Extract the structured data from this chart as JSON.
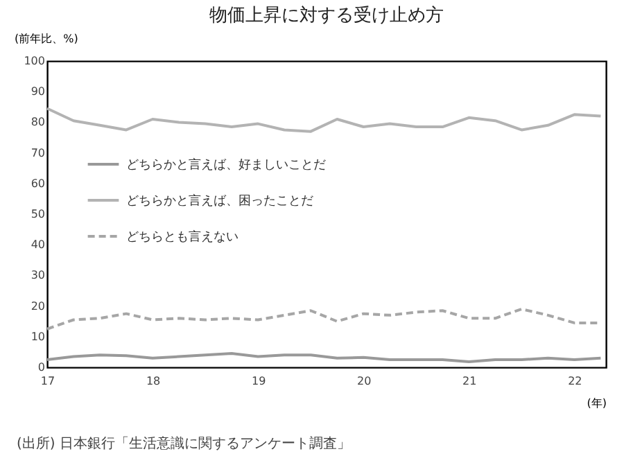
{
  "chart_data": {
    "type": "line",
    "title": "物価上昇に対する受け止め方",
    "ylabel": "(前年比、%)",
    "xlabel": "(年)",
    "annotations": [
      "(出所) 日本銀行「生活意識に関するアンケート調査」"
    ],
    "x": [
      2017,
      2017.25,
      2017.5,
      2017.75,
      2018,
      2018.25,
      2018.5,
      2018.75,
      2019,
      2019.25,
      2019.5,
      2019.75,
      2020,
      2020.25,
      2020.5,
      2020.75,
      2021,
      2021.25,
      2021.5,
      2021.75,
      2022,
      2022.25
    ],
    "series": [
      {
        "name": "どちらかと言えば、好ましいことだ",
        "color": "#999999",
        "line_style": "solid",
        "values": [
          2.5,
          3.5,
          4,
          3.8,
          3,
          3.5,
          4,
          4.5,
          3.5,
          4,
          4,
          3,
          3.2,
          2.5,
          2.5,
          2.5,
          1.8,
          2.5,
          2.5,
          3,
          2.5,
          3
        ]
      },
      {
        "name": "どちらかと言えば、困ったことだ",
        "color": "#b3b3b3",
        "line_style": "solid",
        "values": [
          84.5,
          80.5,
          79,
          77.5,
          81,
          80,
          79.5,
          78.5,
          79.5,
          77.5,
          77,
          81,
          78.5,
          79.5,
          78.5,
          78.5,
          81.5,
          80.5,
          77.5,
          79,
          82.5,
          82
        ]
      },
      {
        "name": "どちらとも言えない",
        "color": "#a6a6a6",
        "line_style": "dashed",
        "values": [
          12.5,
          15.5,
          16,
          17.5,
          15.5,
          16,
          15.5,
          16,
          15.5,
          17,
          18.5,
          15,
          17.5,
          17,
          18,
          18.5,
          16,
          16,
          19,
          17,
          14.5,
          14.5
        ]
      }
    ],
    "xlim": [
      2017,
      2022.3
    ],
    "xticks": [
      {
        "value": 2017,
        "label": "17"
      },
      {
        "value": 2018,
        "label": "18"
      },
      {
        "value": 2019,
        "label": "19"
      },
      {
        "value": 2020,
        "label": "20"
      },
      {
        "value": 2021,
        "label": "21"
      },
      {
        "value": 2022,
        "label": "22"
      }
    ],
    "ylim": [
      0,
      100
    ],
    "yticks": [
      0,
      10,
      20,
      30,
      40,
      50,
      60,
      70,
      80,
      90,
      100
    ],
    "grid": false,
    "legend": "top left"
  }
}
